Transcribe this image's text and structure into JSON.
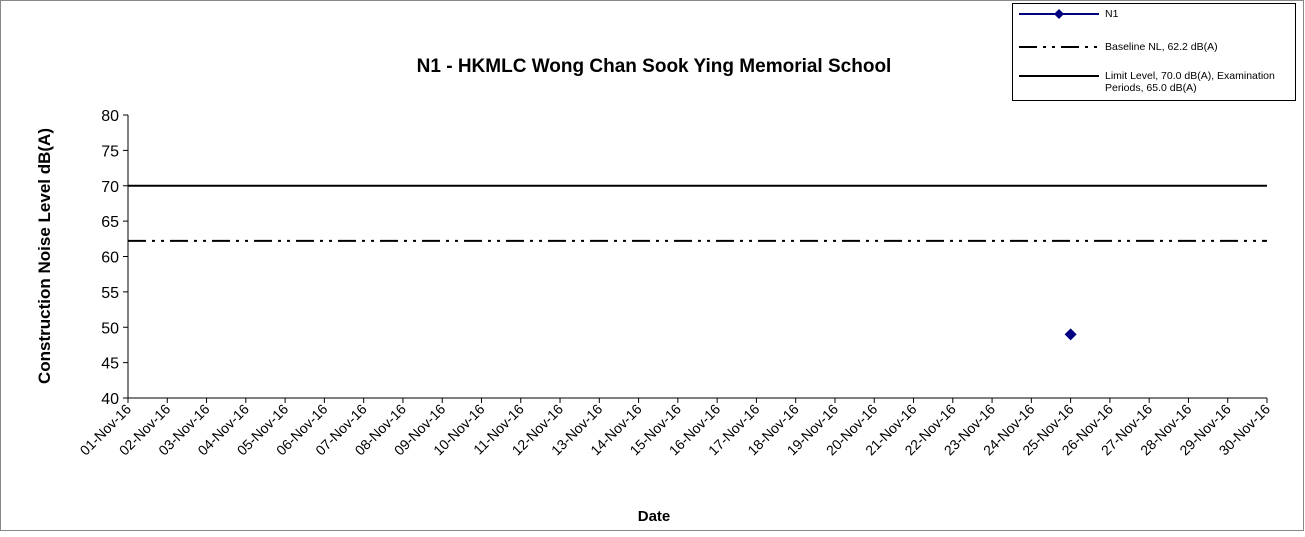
{
  "chart_data": {
    "type": "line",
    "title": "N1 - HKMLC Wong Chan Sook Ying Memorial School",
    "xlabel": "Date",
    "ylabel": "Construction Noise Level  dB(A)",
    "categories": [
      "01-Nov-16",
      "02-Nov-16",
      "03-Nov-16",
      "04-Nov-16",
      "05-Nov-16",
      "06-Nov-16",
      "07-Nov-16",
      "08-Nov-16",
      "09-Nov-16",
      "10-Nov-16",
      "11-Nov-16",
      "12-Nov-16",
      "13-Nov-16",
      "14-Nov-16",
      "15-Nov-16",
      "16-Nov-16",
      "17-Nov-16",
      "18-Nov-16",
      "19-Nov-16",
      "20-Nov-16",
      "21-Nov-16",
      "22-Nov-16",
      "23-Nov-16",
      "24-Nov-16",
      "25-Nov-16",
      "26-Nov-16",
      "27-Nov-16",
      "28-Nov-16",
      "29-Nov-16",
      "30-Nov-16"
    ],
    "series": [
      {
        "name": "N1",
        "color": "#000080",
        "marker": "diamond",
        "dash": "solid",
        "values": [
          null,
          null,
          null,
          null,
          null,
          null,
          null,
          null,
          null,
          null,
          null,
          null,
          null,
          null,
          null,
          null,
          null,
          null,
          null,
          null,
          null,
          null,
          null,
          null,
          49,
          null,
          null,
          null,
          null,
          null
        ]
      },
      {
        "name": "Baseline NL, 62.2 dB(A)",
        "color": "#000000",
        "marker": "none",
        "dash": "dashdotdot",
        "values": [
          62.2,
          62.2,
          62.2,
          62.2,
          62.2,
          62.2,
          62.2,
          62.2,
          62.2,
          62.2,
          62.2,
          62.2,
          62.2,
          62.2,
          62.2,
          62.2,
          62.2,
          62.2,
          62.2,
          62.2,
          62.2,
          62.2,
          62.2,
          62.2,
          62.2,
          62.2,
          62.2,
          62.2,
          62.2,
          62.2
        ]
      },
      {
        "name": "Limit Level, 70.0 dB(A), Examination Periods, 65.0 dB(A)",
        "color": "#000000",
        "marker": "none",
        "dash": "solid",
        "values": [
          70,
          70,
          70,
          70,
          70,
          70,
          70,
          70,
          70,
          70,
          70,
          70,
          70,
          70,
          70,
          70,
          70,
          70,
          70,
          70,
          70,
          70,
          70,
          70,
          70,
          70,
          70,
          70,
          70,
          70
        ]
      }
    ],
    "ylim": [
      40,
      80
    ],
    "yticks": [
      40,
      45,
      50,
      55,
      60,
      65,
      70,
      75,
      80
    ],
    "grid": false,
    "legend": "upper right"
  }
}
